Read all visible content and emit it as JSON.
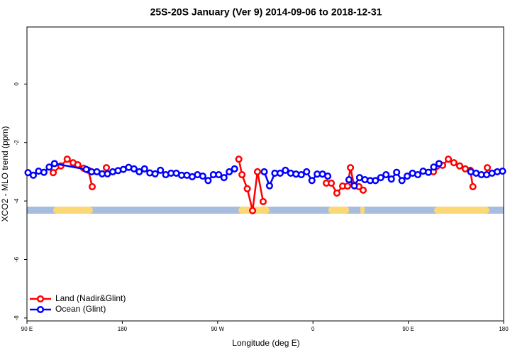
{
  "chart_data": {
    "type": "line",
    "title": "25S-20S January (Ver 9)   2014-09-06 to 2018-12-31",
    "xlabel": "Longitude (deg E)",
    "ylabel": "XCO2 - MLO trend (ppm)",
    "xlim": [
      90,
      540
    ],
    "xticks": [
      {
        "value": 90,
        "label": "90 E"
      },
      180,
      {
        "value": 270,
        "label": "90 W"
      },
      {
        "value": 360,
        "label": "0"
      },
      {
        "value": 450,
        "label": "90 E"
      },
      {
        "value": 540,
        "label": "180"
      }
    ],
    "ylim": [
      -8.1,
      1.95
    ],
    "yticks": [
      0,
      -2,
      -4,
      -6,
      -8
    ],
    "legend": "bottom-left",
    "series": [
      {
        "name": "Land (Nadir&Glint)",
        "color": "#ff0000",
        "x": [
          114.8,
          122,
          128,
          133.5,
          138,
          143.5,
          148,
          151.6,
          158,
          165,
          250,
          290,
          293,
          298,
          303,
          307.6,
          313,
          340,
          372.6,
          377.3,
          382.6,
          388,
          392.7,
          395.4,
          398.7,
          403.4,
          407.4,
          440,
          473.7,
          482.4,
          487.8,
          493,
          498.5,
          503.8,
          508.5,
          511,
          518,
          524.6
        ],
        "values": [
          -3.03,
          -2.8,
          -2.57,
          -2.69,
          -2.76,
          -2.88,
          -2.95,
          -3.51,
          null,
          -2.86,
          null,
          -2.57,
          -3.1,
          -3.58,
          -4.33,
          -3.0,
          -4.02,
          null,
          -3.39,
          -3.39,
          -3.73,
          -3.49,
          -3.49,
          -2.86,
          -3.45,
          -3.51,
          -3.63,
          null,
          -3.0,
          -2.78,
          -2.57,
          -2.69,
          -2.8,
          -2.9,
          -2.95,
          -3.51,
          null,
          -2.86
        ]
      },
      {
        "name": "Ocean (Glint)",
        "color": "#0000ff",
        "x": [
          91,
          96,
          101,
          106,
          111,
          116,
          146,
          151,
          156,
          161,
          166,
          171,
          176,
          181,
          186,
          191,
          196,
          201,
          206,
          211,
          216,
          221,
          226,
          231,
          236,
          241,
          246,
          251,
          256,
          261,
          266,
          271,
          276,
          281,
          286,
          300,
          314,
          319,
          324,
          329,
          334,
          339,
          344,
          349,
          354,
          359,
          364,
          369,
          374,
          384,
          394,
          399,
          404,
          409,
          414,
          419,
          424,
          429,
          434,
          439,
          444,
          449,
          454,
          459,
          464,
          469,
          474,
          479,
          494,
          509,
          514,
          519,
          524,
          529,
          534,
          539
        ],
        "values": [
          -3.03,
          -3.12,
          -2.98,
          -3.02,
          -2.84,
          -2.72,
          -2.92,
          -3.0,
          -3.0,
          -3.07,
          -3.07,
          -3.0,
          -2.96,
          -2.92,
          -2.85,
          -2.9,
          -3.0,
          -2.9,
          -3.04,
          -3.07,
          -2.95,
          -3.1,
          -3.05,
          -3.05,
          -3.12,
          -3.12,
          -3.17,
          -3.1,
          -3.15,
          -3.3,
          -3.1,
          -3.1,
          -3.2,
          -3.0,
          -2.9,
          null,
          -3.0,
          -3.48,
          -3.05,
          -3.05,
          -2.95,
          -3.05,
          -3.08,
          -3.1,
          -3.0,
          -3.3,
          -3.08,
          -3.08,
          -3.15,
          null,
          -3.27,
          -3.48,
          -3.2,
          -3.27,
          -3.3,
          -3.3,
          -3.2,
          -3.1,
          -3.25,
          -3.02,
          -3.3,
          -3.15,
          -3.05,
          -3.1,
          -2.98,
          -3.02,
          -2.84,
          -2.72,
          null,
          -3.0,
          -3.05,
          -3.1,
          -3.1,
          -3.05,
          -3.0,
          -2.98
        ]
      }
    ]
  }
}
